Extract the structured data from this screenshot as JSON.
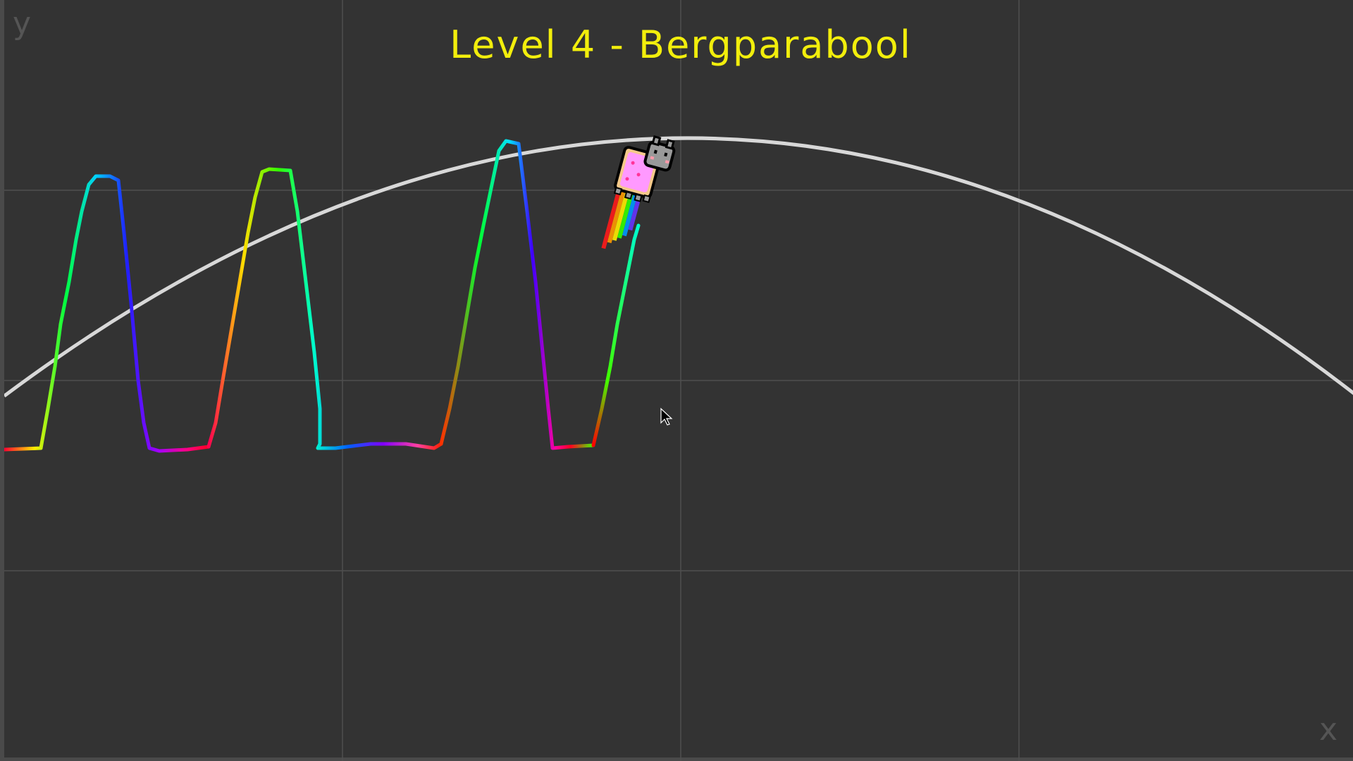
{
  "level": {
    "title": "Level 4 - Bergparabool"
  },
  "axes": {
    "x_label": "x",
    "y_label": "y",
    "grid": true
  },
  "colors": {
    "background": "#333333",
    "grid": "#4f4f4f",
    "parabola": "#d8d8d8",
    "title": "#f2ee0c",
    "axis_label": "#555555"
  },
  "player": {
    "name": "nyan-cat",
    "icon": "nyan-cat-sprite"
  },
  "cursor": {
    "icon": "mouse-pointer-icon"
  }
}
